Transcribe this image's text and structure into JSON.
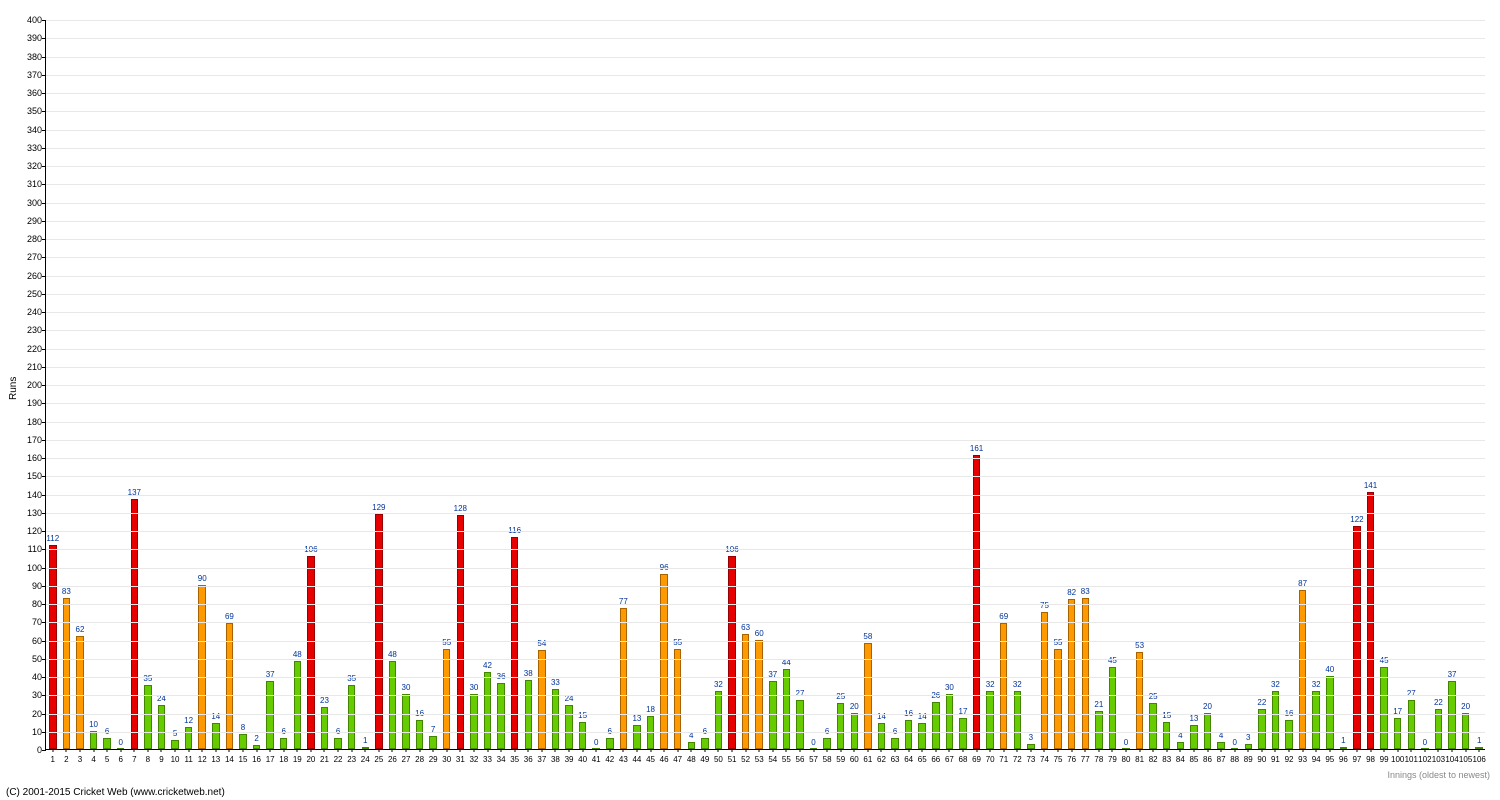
{
  "chart": {
    "type": "bar",
    "ylabel": "Runs",
    "xlabel": "Innings (oldest to newest)",
    "copyright": "(C) 2001-2015 Cricket Web (www.cricketweb.net)",
    "ylim": [
      0,
      400
    ],
    "ytick_step": 10,
    "background_color": "#ffffff",
    "grid_color": "#e8e8e8",
    "axis_color": "#000000",
    "value_label_color": "#003399",
    "value_label_fontsize": 8,
    "tick_fontsize": 9,
    "label_fontsize": 10,
    "bar_width_ratio": 0.55,
    "colors": {
      "low": "#66cc00",
      "mid": "#ff9900",
      "high": "#e60000"
    },
    "thresholds": {
      "mid_min": 50,
      "high_min": 100
    },
    "values": [
      112,
      83,
      62,
      10,
      6,
      0,
      137,
      35,
      24,
      5,
      12,
      90,
      14,
      69,
      8,
      2,
      37,
      6,
      48,
      106,
      23,
      6,
      35,
      1,
      129,
      48,
      30,
      16,
      7,
      55,
      128,
      30,
      42,
      36,
      116,
      38,
      54,
      33,
      24,
      15,
      0,
      6,
      77,
      13,
      18,
      96,
      55,
      4,
      6,
      32,
      106,
      63,
      60,
      37,
      44,
      27,
      0,
      6,
      25,
      20,
      58,
      14,
      6,
      16,
      14,
      26,
      30,
      17,
      161,
      32,
      69,
      32,
      3,
      75,
      55,
      82,
      83,
      21,
      45,
      0,
      53,
      25,
      15,
      4,
      13,
      20,
      4,
      0,
      3,
      22,
      32,
      16,
      87,
      32,
      40,
      1,
      122,
      141,
      45,
      17,
      27,
      0,
      22,
      37,
      20,
      1
    ]
  }
}
